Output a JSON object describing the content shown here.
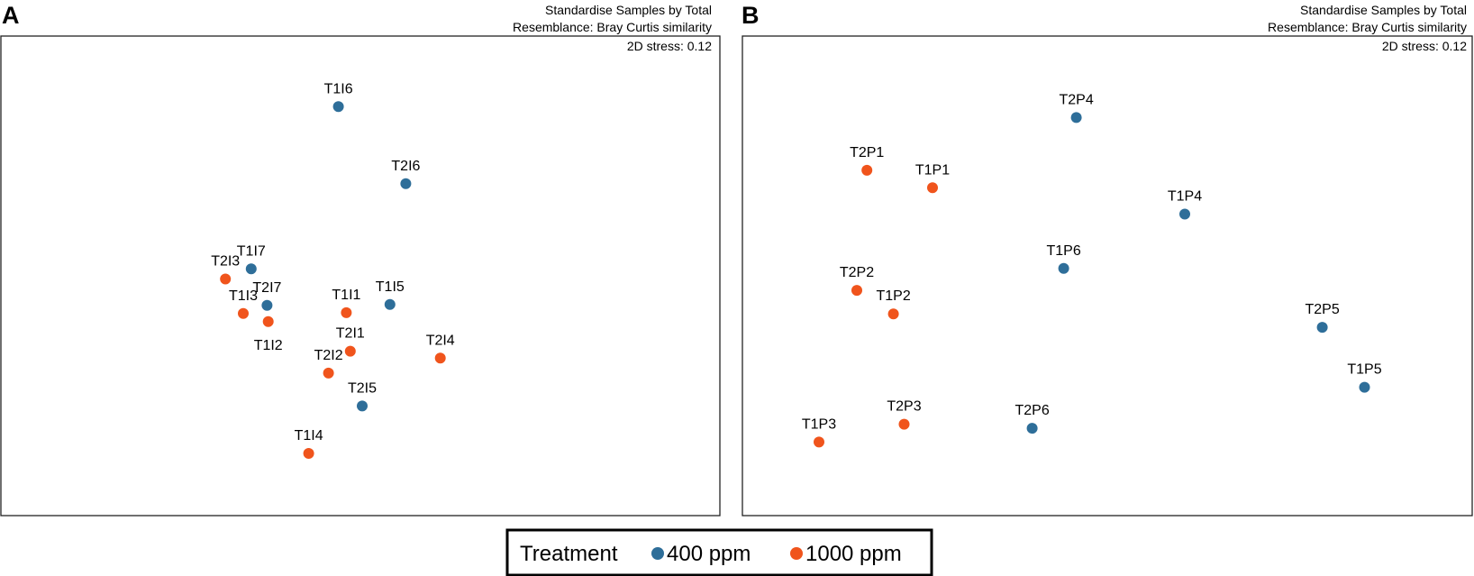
{
  "colors": {
    "ppm400": "#2e6e99",
    "ppm1000": "#f0541c"
  },
  "legend": {
    "title": "Treatment",
    "items": [
      {
        "label": "400 ppm",
        "group": "ppm400"
      },
      {
        "label": "1000 ppm",
        "group": "ppm1000"
      }
    ]
  },
  "chart_data": [
    {
      "type": "scatter",
      "panel": "A",
      "header_line1": "Standardise Samples by Total",
      "header_line2": "Resemblance: Bray Curtis similarity",
      "stress": "2D stress: 0.12",
      "xlim": [
        0,
        100
      ],
      "ylim": [
        0,
        100
      ],
      "points": [
        {
          "label": "T1I6",
          "x": 49.0,
          "y": 91.5,
          "group": "ppm400",
          "lpos": "above"
        },
        {
          "label": "T2I6",
          "x": 66.0,
          "y": 72.5,
          "group": "ppm400",
          "lpos": "above"
        },
        {
          "label": "T1I7",
          "x": 27.0,
          "y": 51.5,
          "group": "ppm400",
          "lpos": "above"
        },
        {
          "label": "T2I3",
          "x": 20.5,
          "y": 49.0,
          "group": "ppm1000",
          "lpos": "above"
        },
        {
          "label": "T2I7",
          "x": 31.0,
          "y": 42.5,
          "group": "ppm400",
          "lpos": "above"
        },
        {
          "label": "T1I3",
          "x": 25.0,
          "y": 40.5,
          "group": "ppm1000",
          "lpos": "above"
        },
        {
          "label": "T1I2",
          "x": 31.3,
          "y": 38.5,
          "group": "ppm1000",
          "lpos": "below"
        },
        {
          "label": "T1I1",
          "x": 51.0,
          "y": 40.7,
          "group": "ppm1000",
          "lpos": "above"
        },
        {
          "label": "T1I5",
          "x": 62.0,
          "y": 42.7,
          "group": "ppm400",
          "lpos": "above"
        },
        {
          "label": "T2I1",
          "x": 52.0,
          "y": 31.2,
          "group": "ppm1000",
          "lpos": "above"
        },
        {
          "label": "T2I2",
          "x": 46.5,
          "y": 25.8,
          "group": "ppm1000",
          "lpos": "above"
        },
        {
          "label": "T2I4",
          "x": 74.7,
          "y": 29.5,
          "group": "ppm1000",
          "lpos": "above"
        },
        {
          "label": "T2I5",
          "x": 55.0,
          "y": 17.7,
          "group": "ppm400",
          "lpos": "above"
        },
        {
          "label": "T1I4",
          "x": 41.5,
          "y": 6.0,
          "group": "ppm1000",
          "lpos": "above"
        }
      ]
    },
    {
      "type": "scatter",
      "panel": "B",
      "header_line1": "Standardise Samples by Total",
      "header_line2": "Resemblance: Bray Curtis similarity",
      "stress": "2D stress: 0.12",
      "xlim": [
        0,
        100
      ],
      "ylim": [
        0,
        100
      ],
      "points": [
        {
          "label": "T2P4",
          "x": 47.8,
          "y": 88.8,
          "group": "ppm400",
          "lpos": "above"
        },
        {
          "label": "T2P1",
          "x": 14.6,
          "y": 75.8,
          "group": "ppm1000",
          "lpos": "above"
        },
        {
          "label": "T1P1",
          "x": 25.0,
          "y": 71.5,
          "group": "ppm1000",
          "lpos": "above"
        },
        {
          "label": "T1P4",
          "x": 65.0,
          "y": 65.0,
          "group": "ppm400",
          "lpos": "above"
        },
        {
          "label": "T1P6",
          "x": 45.8,
          "y": 51.6,
          "group": "ppm400",
          "lpos": "above"
        },
        {
          "label": "T2P2",
          "x": 13.0,
          "y": 46.2,
          "group": "ppm1000",
          "lpos": "above"
        },
        {
          "label": "T1P2",
          "x": 18.8,
          "y": 40.4,
          "group": "ppm1000",
          "lpos": "above"
        },
        {
          "label": "T2P5",
          "x": 86.8,
          "y": 37.1,
          "group": "ppm400",
          "lpos": "above"
        },
        {
          "label": "T1P5",
          "x": 93.5,
          "y": 22.3,
          "group": "ppm400",
          "lpos": "above"
        },
        {
          "label": "T2P3",
          "x": 20.5,
          "y": 13.2,
          "group": "ppm1000",
          "lpos": "above"
        },
        {
          "label": "T2P6",
          "x": 40.8,
          "y": 12.2,
          "group": "ppm400",
          "lpos": "above"
        },
        {
          "label": "T1P3",
          "x": 7.0,
          "y": 8.8,
          "group": "ppm1000",
          "lpos": "above"
        }
      ]
    }
  ]
}
